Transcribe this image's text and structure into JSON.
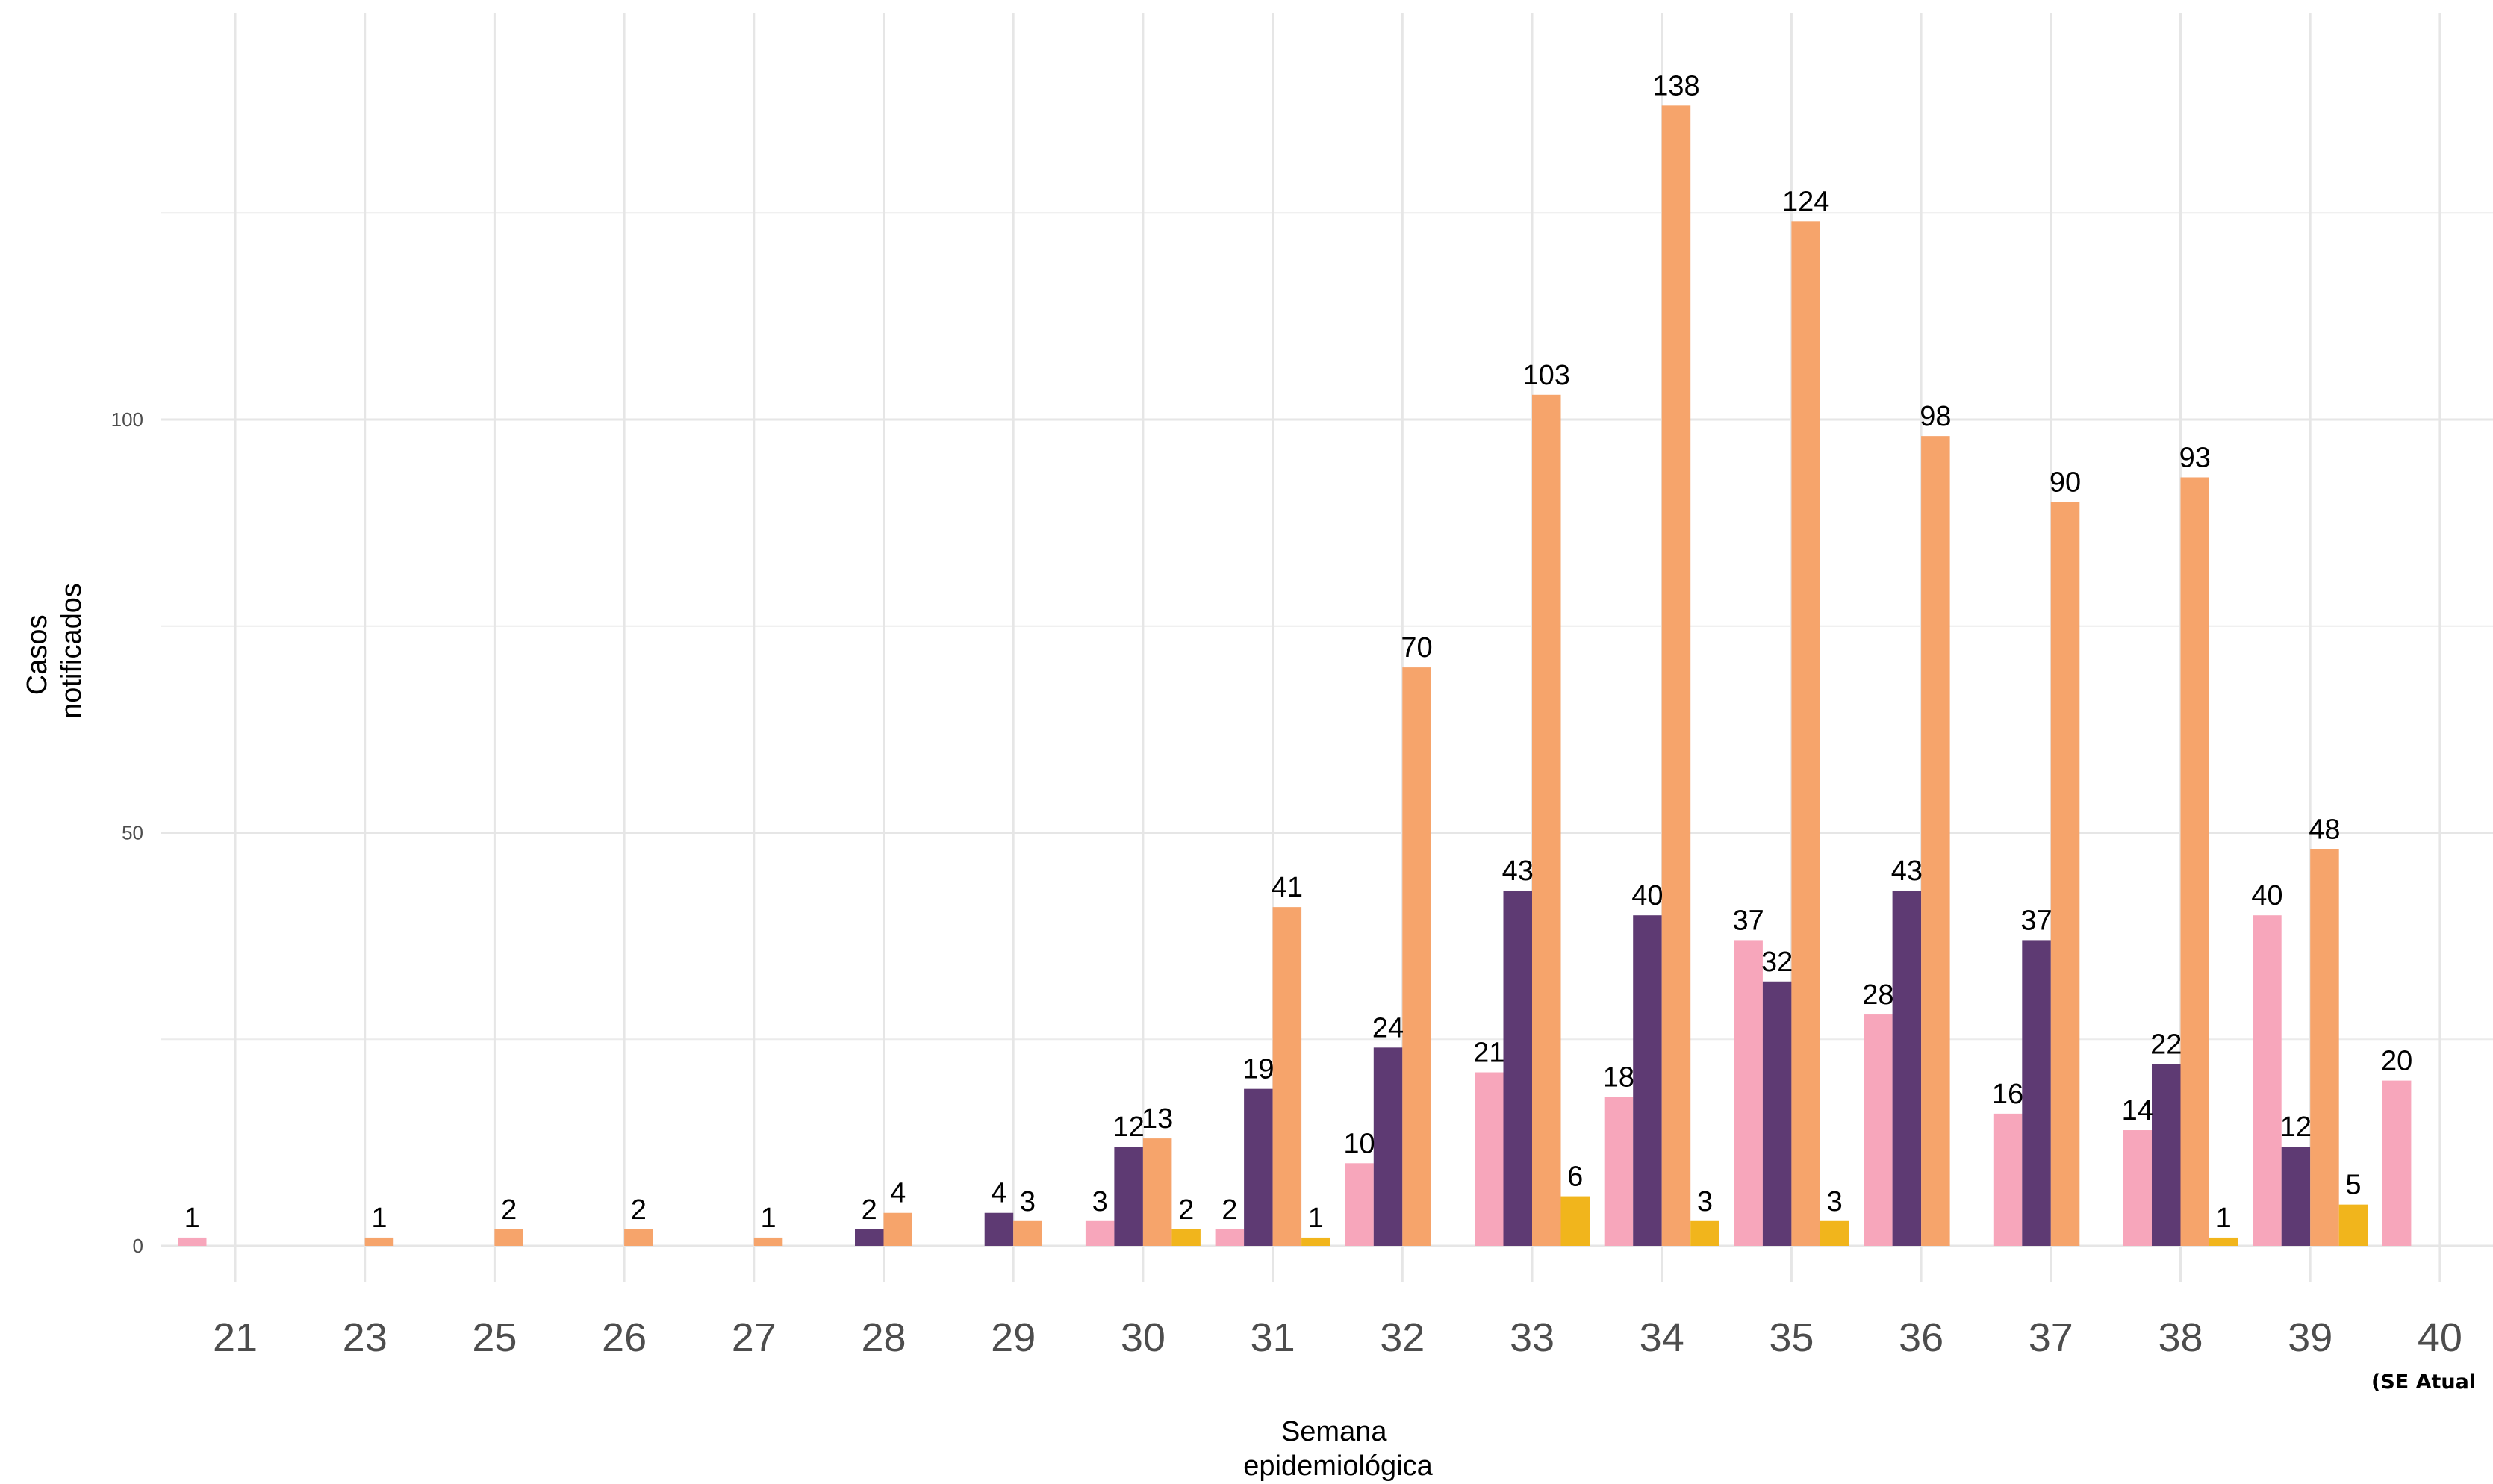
{
  "chart_data": {
    "type": "bar",
    "xlabel": [
      "Semana",
      "epidemiológica"
    ],
    "ylabel": [
      "Casos",
      "notificados"
    ],
    "ylim": [
      -12,
      150
    ],
    "yticks": [
      0,
      50,
      100
    ],
    "grid": true,
    "legend": "none",
    "categories": [
      "21",
      "23",
      "25",
      "26",
      "27",
      "28",
      "29",
      "30",
      "31",
      "32",
      "33",
      "34",
      "35",
      "36",
      "37",
      "38",
      "39",
      "40"
    ],
    "last_category_note": "(SE Atual",
    "colors": [
      "#f7a6bb",
      "#5e3a73",
      "#f6a46b",
      "#f1b51c"
    ],
    "series": [
      {
        "values": [
          1,
          null,
          null,
          null,
          null,
          null,
          null,
          3,
          2,
          10,
          21,
          18,
          37,
          28,
          16,
          14,
          40,
          20
        ]
      },
      {
        "values": [
          null,
          null,
          null,
          null,
          null,
          2,
          4,
          12,
          19,
          24,
          43,
          40,
          32,
          43,
          37,
          22,
          12,
          null
        ]
      },
      {
        "values": [
          null,
          1,
          2,
          2,
          1,
          4,
          3,
          13,
          41,
          70,
          103,
          138,
          124,
          98,
          90,
          93,
          48,
          null
        ]
      },
      {
        "values": [
          null,
          null,
          null,
          null,
          null,
          null,
          null,
          2,
          1,
          null,
          6,
          3,
          3,
          null,
          null,
          1,
          5,
          null
        ]
      }
    ]
  }
}
